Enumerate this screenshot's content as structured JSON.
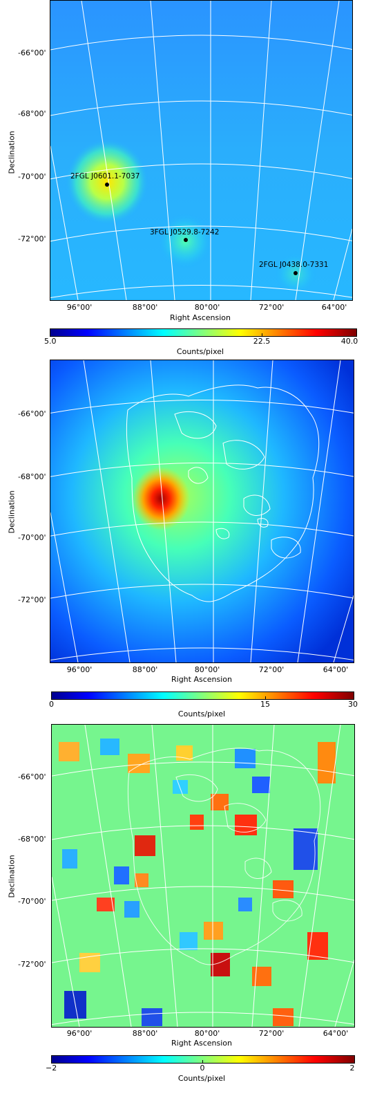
{
  "panels": [
    {
      "ylabel": "Declination",
      "xlabel": "Right Ascension",
      "yticks": [
        "-66°00'",
        "-68°00'",
        "-70°00'",
        "-72°00'"
      ],
      "xticks": [
        "96°00'",
        "88°00'",
        "80°00'",
        "72°00'",
        "64°00'"
      ],
      "colorbar": {
        "label": "Counts/pixel",
        "ticks": [
          "5.0",
          "22.5",
          "40.0"
        ],
        "range": [
          5.0,
          40.0
        ]
      },
      "sources": [
        {
          "name": "2FGL J0601.1-7037"
        },
        {
          "name": "3FGL J0529.8-7242"
        },
        {
          "name": "2FGL J0438.0-7331"
        }
      ]
    },
    {
      "ylabel": "Declination",
      "xlabel": "Right Ascension",
      "yticks": [
        "-66°00'",
        "-68°00'",
        "-70°00'",
        "-72°00'"
      ],
      "xticks": [
        "96°00'",
        "88°00'",
        "80°00'",
        "72°00'",
        "64°00'"
      ],
      "colorbar": {
        "label": "Counts/pixel",
        "ticks": [
          "0",
          "15",
          "30"
        ],
        "range": [
          0,
          30
        ]
      }
    },
    {
      "ylabel": "Declination",
      "xlabel": "Right Ascension",
      "yticks": [
        "-66°00'",
        "-68°00'",
        "-70°00'",
        "-72°00'"
      ],
      "xticks": [
        "96°00'",
        "88°00'",
        "80°00'",
        "72°00'",
        "64°00'"
      ],
      "colorbar": {
        "label": "Counts/pixel",
        "ticks": [
          "−2",
          "0",
          "2"
        ],
        "range": [
          -2,
          2
        ]
      }
    }
  ],
  "colormap": "jet"
}
